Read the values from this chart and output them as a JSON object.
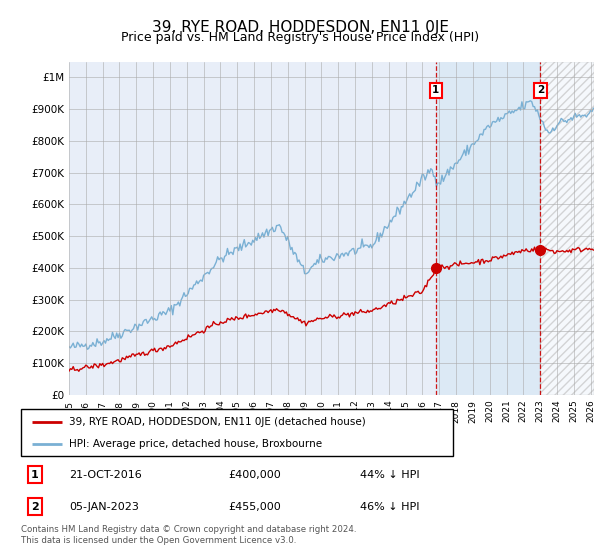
{
  "title": "39, RYE ROAD, HODDESDON, EN11 0JE",
  "subtitle": "Price paid vs. HM Land Registry's House Price Index (HPI)",
  "title_fontsize": 11,
  "subtitle_fontsize": 9,
  "ylim": [
    0,
    1050000
  ],
  "yticks": [
    0,
    100000,
    200000,
    300000,
    400000,
    500000,
    600000,
    700000,
    800000,
    900000,
    1000000
  ],
  "ytick_labels": [
    "£0",
    "£100K",
    "£200K",
    "£300K",
    "£400K",
    "£500K",
    "£600K",
    "£700K",
    "£800K",
    "£900K",
    "£1M"
  ],
  "xlim_start": 1995.0,
  "xlim_end": 2026.2,
  "hpi_color": "#7ab0d4",
  "price_color": "#cc0000",
  "shade_color": "#dce9f5",
  "sale1_date": 2016.8,
  "sale1_price": 400000,
  "sale2_date": 2023.02,
  "sale2_price": 455000,
  "legend_line1": "39, RYE ROAD, HODDESDON, EN11 0JE (detached house)",
  "legend_line2": "HPI: Average price, detached house, Broxbourne",
  "annotation1_date": "21-OCT-2016",
  "annotation1_price": "£400,000",
  "annotation1_hpi": "44% ↓ HPI",
  "annotation2_date": "05-JAN-2023",
  "annotation2_price": "£455,000",
  "annotation2_hpi": "46% ↓ HPI",
  "footer": "Contains HM Land Registry data © Crown copyright and database right 2024.\nThis data is licensed under the Open Government Licence v3.0.",
  "bg_color": "#ffffff",
  "plot_bg_color": "#e8eef8"
}
